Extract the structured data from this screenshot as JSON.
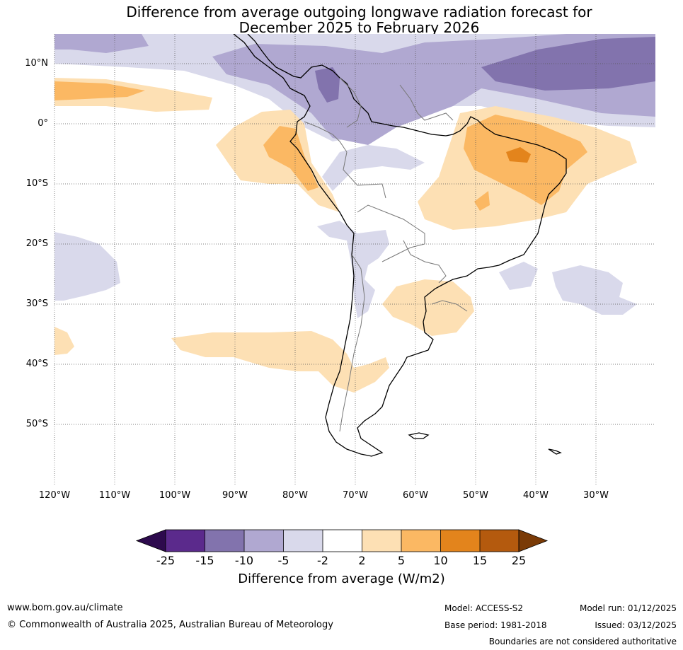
{
  "title": {
    "line1": "Difference from average outgoing longwave radiation forecast for",
    "line2": "December 2025 to February 2026"
  },
  "map": {
    "lat_labels": [
      "10°N",
      "0°",
      "10°S",
      "20°S",
      "30°S",
      "40°S",
      "50°S"
    ],
    "lon_labels": [
      "120°W",
      "110°W",
      "100°W",
      "90°W",
      "80°W",
      "70°W",
      "60°W",
      "50°W",
      "40°W",
      "30°W"
    ],
    "region": "South America"
  },
  "legend": {
    "ticks": [
      "-25",
      "-15",
      "-10",
      "-5",
      "-2",
      "2",
      "5",
      "10",
      "15",
      "25"
    ],
    "title": "Difference from average (W/m2)",
    "colors": [
      "#2d0a4d",
      "#5b2a8c",
      "#8273ad",
      "#b0a8d1",
      "#d9d9eb",
      "#ffffff",
      "#fde0b4",
      "#fbb863",
      "#e3841c",
      "#b45a0e",
      "#7a3a06"
    ]
  },
  "footer": {
    "url": "www.bom.gov.au/climate",
    "copyright": "© Commonwealth of Australia 2025, Australian Bureau of Meteorology",
    "model": "Model: ACCESS-S2",
    "base_period": "Base period: 1981-2018",
    "model_run": "Model run: 01/12/2025",
    "issued": "Issued: 03/12/2025",
    "disclaimer": "Boundaries are not considered authoritative"
  }
}
